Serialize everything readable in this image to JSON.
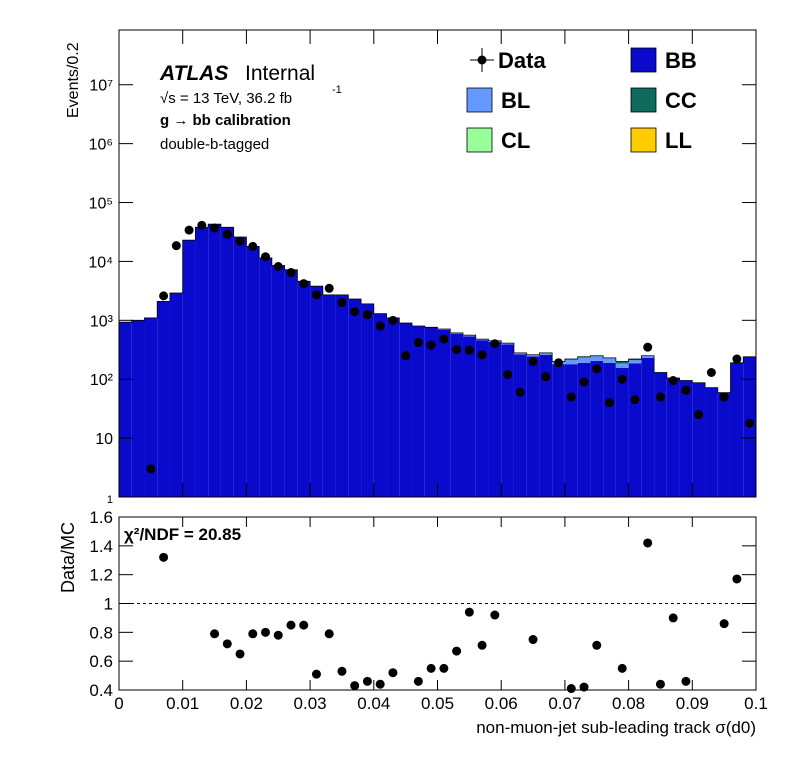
{
  "chart_data": [
    {
      "type": "stacked-histogram",
      "ylabel": "Events/0.2",
      "log_scale": true,
      "ylim": [
        1,
        85000000
      ],
      "yticks": [
        1,
        10,
        {
          "value": 100,
          "label": "10²"
        },
        {
          "value": 1000,
          "label": "10³"
        },
        {
          "value": 10000,
          "label": "10⁴"
        },
        {
          "value": 100000,
          "label": "10⁵"
        },
        {
          "value": 1000000,
          "label": "10⁶"
        },
        {
          "value": 10000000,
          "label": "10⁷"
        }
      ],
      "experiment": "ATLAS",
      "status": "Internal",
      "energy": "√s = 13 TeV, 36.2 fb",
      "energy_exponent": "-1",
      "selection": "g  → bb calibration",
      "tagging": "double-b-tagged",
      "bins": [
        0,
        0.002,
        0.004,
        0.006,
        0.008,
        0.01,
        0.012,
        0.014,
        0.016,
        0.018,
        0.02,
        0.022,
        0.024,
        0.026,
        0.028,
        0.03,
        0.032,
        0.034,
        0.036,
        0.038,
        0.04,
        0.042,
        0.044,
        0.046,
        0.048,
        0.05,
        0.052,
        0.054,
        0.056,
        0.058,
        0.06,
        0.062,
        0.064,
        0.066,
        0.068,
        0.07,
        0.072,
        0.074,
        0.076,
        0.078,
        0.08,
        0.082,
        0.084,
        0.086,
        0.088,
        0.09,
        0.092,
        0.094,
        0.096,
        0.098,
        0.1
      ],
      "series": [
        {
          "name": "BB",
          "color": "#0a0acc",
          "values": [
            930,
            1000,
            1100,
            2100,
            2900,
            23000,
            38000,
            43000,
            38000,
            26000,
            18000,
            11500,
            8500,
            7200,
            4600,
            3800,
            2700,
            2700,
            2300,
            1900,
            1300,
            1100,
            900,
            800,
            760,
            690,
            590,
            535,
            460,
            430,
            390,
            265,
            245,
            260,
            180,
            180,
            190,
            205,
            190,
            155,
            185,
            230,
            130,
            105,
            95,
            87,
            72,
            59,
            190,
            240
          ]
        },
        {
          "name": "BL",
          "color": "#6699ff",
          "values": [
            0,
            0,
            0,
            0,
            0,
            0,
            0,
            0,
            0,
            0,
            0,
            0,
            0,
            0,
            0,
            0,
            0,
            0,
            0,
            0,
            0,
            0,
            0,
            0,
            0,
            20,
            20,
            25,
            20,
            20,
            20,
            15,
            15,
            20,
            20,
            40,
            50,
            45,
            40,
            30,
            25,
            20,
            0,
            0,
            0,
            0,
            0,
            0,
            0,
            0
          ]
        },
        {
          "name": "CC",
          "color": "#0d6b5e",
          "values": [
            0,
            0,
            0,
            0,
            0,
            0,
            0,
            0,
            0,
            0,
            0,
            0,
            0,
            0,
            0,
            0,
            0,
            0,
            0,
            0,
            0,
            0,
            0,
            0,
            0,
            0,
            0,
            0,
            0,
            0,
            0,
            0,
            0,
            0,
            0,
            0,
            0,
            0,
            0,
            15,
            10,
            0,
            0,
            0,
            0,
            0,
            0,
            0,
            0,
            0
          ]
        },
        {
          "name": "CL",
          "color": "#99ff99",
          "values": [
            0,
            0,
            0,
            0,
            0,
            0,
            0,
            0,
            0,
            0,
            0,
            0,
            0,
            0,
            0,
            0,
            0,
            0,
            0,
            0,
            0,
            0,
            0,
            0,
            0,
            0,
            0,
            0,
            0,
            0,
            0,
            0,
            0,
            0,
            0,
            0,
            0,
            0,
            0,
            0,
            0,
            0,
            0,
            0,
            0,
            0,
            0,
            0,
            0,
            0
          ]
        },
        {
          "name": "LL",
          "color": "#ffcc00",
          "values": [
            0,
            0,
            0,
            0,
            0,
            0,
            0,
            0,
            0,
            0,
            0,
            0,
            0,
            0,
            0,
            0,
            0,
            0,
            0,
            0,
            0,
            0,
            0,
            0,
            0,
            0,
            0,
            0,
            0,
            0,
            0,
            0,
            0,
            0,
            0,
            0,
            0,
            0,
            0,
            0,
            0,
            0,
            0,
            0,
            0,
            0,
            0,
            0,
            0,
            0
          ]
        }
      ],
      "data": {
        "name": "Data",
        "color": "#000000",
        "values": [
          null,
          null,
          3,
          2600,
          18500,
          34000,
          41000,
          37000,
          29000,
          22000,
          18000,
          12000,
          8200,
          6500,
          4200,
          2700,
          3500,
          2000,
          1400,
          1250,
          800,
          1000,
          250,
          420,
          380,
          480,
          320,
          310,
          260,
          400,
          120,
          60,
          200,
          110,
          190,
          50,
          90,
          150,
          40,
          100,
          45,
          350,
          50,
          95,
          65,
          25,
          130,
          50,
          220,
          18
        ]
      }
    },
    {
      "type": "scatter",
      "ylabel": "Data/MC",
      "xlabel": "non-muon-jet sub-leading track σ(d0)",
      "annotation": "χ²/NDF = 20.85",
      "xlim": [
        0,
        0.1
      ],
      "xticks": [
        0,
        0.01,
        0.02,
        0.03,
        0.04,
        0.05,
        0.06,
        0.07,
        0.08,
        0.09,
        0.1
      ],
      "ylim": [
        0.4,
        1.6
      ],
      "yticks": [
        0.4,
        0.6,
        0.8,
        1,
        1.2,
        1.4,
        1.6
      ],
      "reference_line": 1,
      "color": "#000000",
      "values": [
        null,
        null,
        null,
        1.32,
        null,
        null,
        null,
        0.79,
        0.72,
        0.65,
        0.79,
        0.8,
        0.78,
        0.85,
        0.85,
        0.51,
        0.79,
        0.53,
        0.43,
        0.46,
        0.44,
        0.52,
        null,
        0.46,
        0.55,
        0.55,
        0.67,
        0.94,
        0.71,
        0.92,
        null,
        null,
        0.75,
        null,
        null,
        0.41,
        0.42,
        0.71,
        null,
        0.55,
        null,
        1.42,
        0.44,
        0.9,
        0.46,
        null,
        null,
        0.86,
        1.17,
        null
      ]
    }
  ]
}
